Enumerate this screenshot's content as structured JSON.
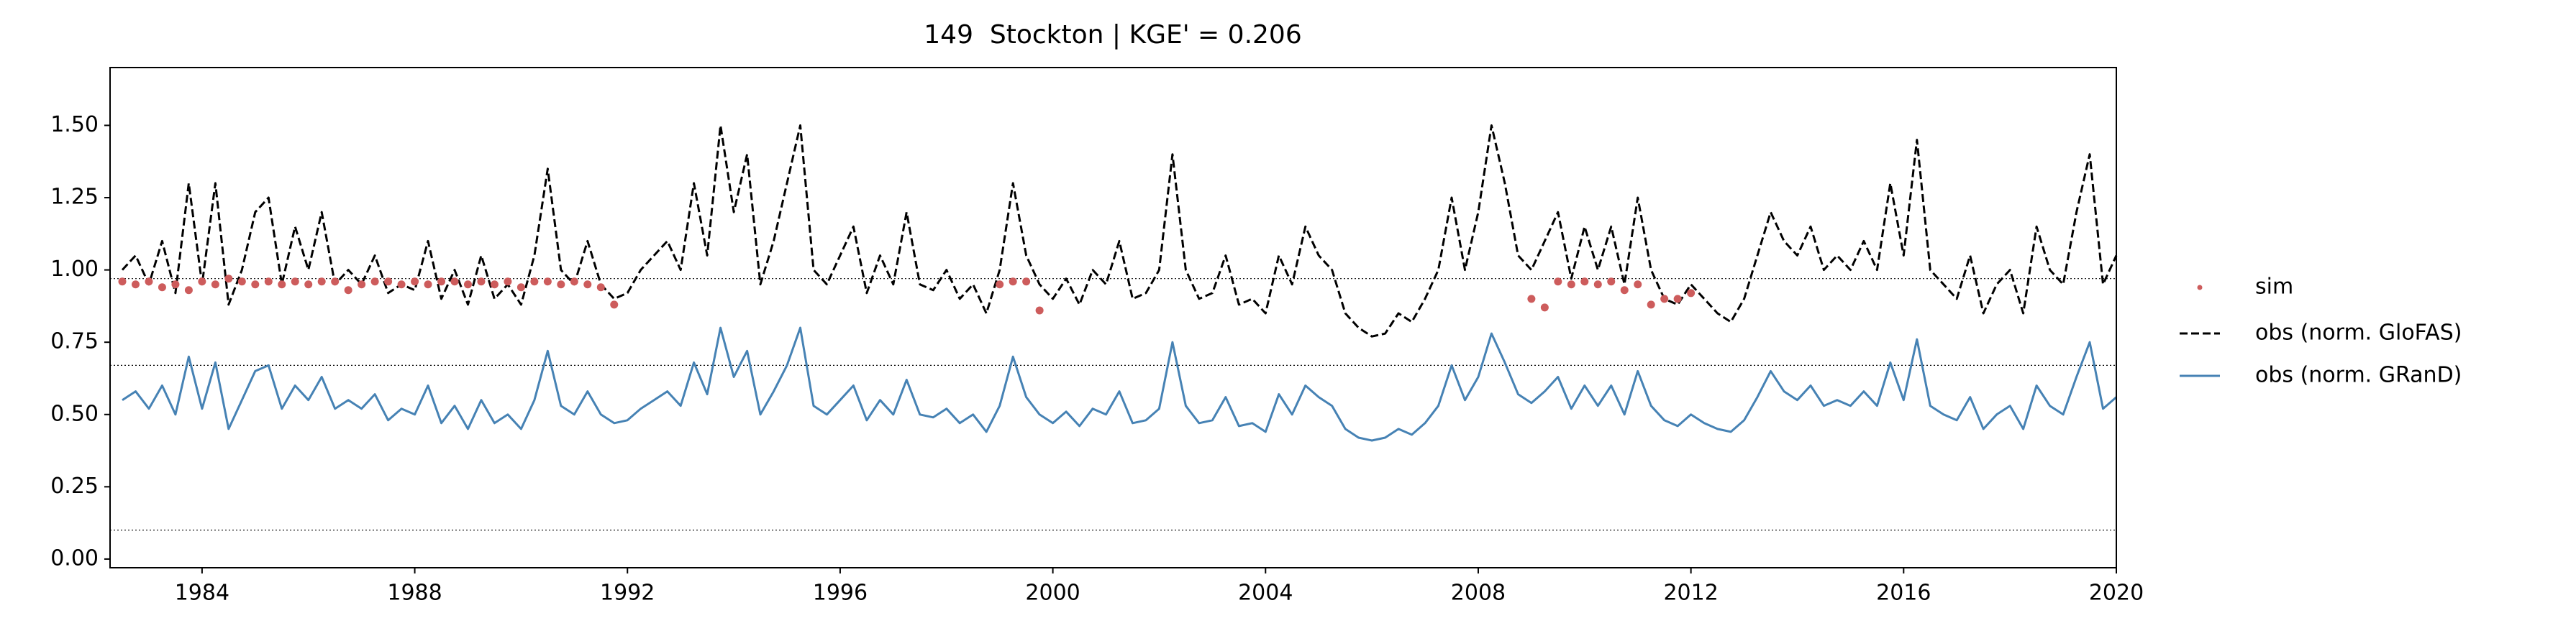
{
  "chart_data": {
    "type": "line",
    "title": "149  Stockton | KGE' = 0.206",
    "x": [
      1982.5,
      1982.75,
      1983,
      1983.25,
      1983.5,
      1983.75,
      1984,
      1984.25,
      1984.5,
      1984.75,
      1985,
      1985.25,
      1985.5,
      1985.75,
      1986,
      1986.25,
      1986.5,
      1986.75,
      1987,
      1987.25,
      1987.5,
      1987.75,
      1988,
      1988.25,
      1988.5,
      1988.75,
      1989,
      1989.25,
      1989.5,
      1989.75,
      1990,
      1990.25,
      1990.5,
      1990.75,
      1991,
      1991.25,
      1991.5,
      1991.75,
      1992,
      1992.25,
      1992.5,
      1992.75,
      1993,
      1993.25,
      1993.5,
      1993.75,
      1994,
      1994.25,
      1994.5,
      1994.75,
      1995,
      1995.25,
      1995.5,
      1995.75,
      1996,
      1996.25,
      1996.5,
      1996.75,
      1997,
      1997.25,
      1997.5,
      1997.75,
      1998,
      1998.25,
      1998.5,
      1998.75,
      1999,
      1999.25,
      1999.5,
      1999.75,
      2000,
      2000.25,
      2000.5,
      2000.75,
      2001,
      2001.25,
      2001.5,
      2001.75,
      2002,
      2002.25,
      2002.5,
      2002.75,
      2003,
      2003.25,
      2003.5,
      2003.75,
      2004,
      2004.25,
      2004.5,
      2004.75,
      2005,
      2005.25,
      2005.5,
      2005.75,
      2006,
      2006.25,
      2006.5,
      2006.75,
      2007,
      2007.25,
      2007.5,
      2007.75,
      2008,
      2008.25,
      2008.5,
      2008.75,
      2009,
      2009.25,
      2009.5,
      2009.75,
      2010,
      2010.25,
      2010.5,
      2010.75,
      2011,
      2011.25,
      2011.5,
      2011.75,
      2012,
      2012.25,
      2012.5,
      2012.75,
      2013,
      2013.25,
      2013.5,
      2013.75,
      2014,
      2014.25,
      2014.5,
      2014.75,
      2015,
      2015.25,
      2015.5,
      2015.75,
      2016,
      2016.25,
      2016.5,
      2016.75,
      2017,
      2017.25,
      2017.5,
      2017.75,
      2018,
      2018.25,
      2018.5,
      2018.75,
      2019,
      2019.25,
      2019.5,
      2019.75,
      2020
    ],
    "series": [
      {
        "name": "sim",
        "color": "#cd5c5c",
        "style": "dots",
        "values": [
          0.96,
          0.95,
          0.96,
          0.94,
          0.95,
          0.93,
          0.96,
          0.95,
          0.97,
          0.96,
          0.95,
          0.96,
          0.95,
          0.96,
          0.95,
          0.96,
          0.96,
          0.93,
          0.95,
          0.96,
          0.96,
          0.95,
          0.96,
          0.95,
          0.96,
          0.96,
          0.95,
          0.96,
          0.95,
          0.96,
          0.94,
          0.96,
          0.96,
          0.95,
          0.96,
          0.95,
          0.94,
          0.88,
          null,
          null,
          null,
          null,
          null,
          null,
          null,
          null,
          null,
          null,
          null,
          null,
          null,
          null,
          null,
          null,
          null,
          null,
          null,
          null,
          null,
          null,
          null,
          null,
          null,
          null,
          null,
          null,
          0.95,
          0.96,
          0.96,
          0.86,
          null,
          null,
          null,
          null,
          null,
          null,
          null,
          null,
          null,
          null,
          null,
          null,
          null,
          null,
          null,
          null,
          null,
          null,
          null,
          null,
          null,
          null,
          null,
          null,
          null,
          null,
          null,
          null,
          null,
          null,
          null,
          null,
          null,
          null,
          null,
          null,
          0.9,
          0.87,
          0.96,
          0.95,
          0.96,
          0.95,
          0.96,
          0.93,
          0.95,
          0.88,
          0.9,
          0.9,
          0.92,
          null,
          null,
          null,
          null,
          null,
          null,
          null,
          null,
          null,
          null,
          null,
          null,
          null,
          null,
          null,
          null,
          null,
          null,
          null,
          null,
          null,
          null,
          null,
          null,
          null,
          null,
          null,
          null,
          null,
          null,
          null,
          null
        ]
      },
      {
        "name": "obs (norm. GloFAS)",
        "color": "#000000",
        "style": "dashed",
        "values": [
          1.0,
          1.05,
          0.95,
          1.1,
          0.92,
          1.3,
          0.95,
          1.3,
          0.88,
          1.0,
          1.2,
          1.25,
          0.95,
          1.15,
          1.0,
          1.2,
          0.95,
          1.0,
          0.95,
          1.05,
          0.92,
          0.95,
          0.93,
          1.1,
          0.9,
          1.0,
          0.88,
          1.05,
          0.9,
          0.95,
          0.88,
          1.05,
          1.35,
          1.0,
          0.95,
          1.1,
          0.95,
          0.9,
          0.92,
          1.0,
          1.05,
          1.1,
          1.0,
          1.3,
          1.05,
          1.5,
          1.2,
          1.4,
          0.95,
          1.1,
          1.3,
          1.5,
          1.0,
          0.95,
          1.05,
          1.15,
          0.92,
          1.05,
          0.95,
          1.2,
          0.95,
          0.93,
          1.0,
          0.9,
          0.95,
          0.85,
          1.0,
          1.3,
          1.05,
          0.95,
          0.9,
          0.97,
          0.88,
          1.0,
          0.95,
          1.1,
          0.9,
          0.92,
          1.0,
          1.4,
          1.0,
          0.9,
          0.92,
          1.05,
          0.88,
          0.9,
          0.85,
          1.05,
          0.95,
          1.15,
          1.05,
          1.0,
          0.85,
          0.8,
          0.77,
          0.78,
          0.85,
          0.82,
          0.9,
          1.0,
          1.25,
          1.0,
          1.2,
          1.5,
          1.3,
          1.05,
          1.0,
          1.1,
          1.2,
          0.97,
          1.15,
          1.0,
          1.15,
          0.95,
          1.25,
          1.0,
          0.9,
          0.88,
          0.95,
          0.9,
          0.85,
          0.82,
          0.9,
          1.05,
          1.2,
          1.1,
          1.05,
          1.15,
          1.0,
          1.05,
          1.0,
          1.1,
          1.0,
          1.3,
          1.05,
          1.45,
          1.0,
          0.95,
          0.9,
          1.05,
          0.85,
          0.95,
          1.0,
          0.85,
          1.15,
          1.0,
          0.95,
          1.2,
          1.4,
          0.95,
          1.05
        ]
      },
      {
        "name": "obs (norm. GRanD)",
        "color": "#4682b4",
        "style": "solid",
        "values": [
          0.55,
          0.58,
          0.52,
          0.6,
          0.5,
          0.7,
          0.52,
          0.68,
          0.45,
          0.55,
          0.65,
          0.67,
          0.52,
          0.6,
          0.55,
          0.63,
          0.52,
          0.55,
          0.52,
          0.57,
          0.48,
          0.52,
          0.5,
          0.6,
          0.47,
          0.53,
          0.45,
          0.55,
          0.47,
          0.5,
          0.45,
          0.55,
          0.72,
          0.53,
          0.5,
          0.58,
          0.5,
          0.47,
          0.48,
          0.52,
          0.55,
          0.58,
          0.53,
          0.68,
          0.57,
          0.8,
          0.63,
          0.72,
          0.5,
          0.58,
          0.67,
          0.8,
          0.53,
          0.5,
          0.55,
          0.6,
          0.48,
          0.55,
          0.5,
          0.62,
          0.5,
          0.49,
          0.52,
          0.47,
          0.5,
          0.44,
          0.53,
          0.7,
          0.56,
          0.5,
          0.47,
          0.51,
          0.46,
          0.52,
          0.5,
          0.58,
          0.47,
          0.48,
          0.52,
          0.75,
          0.53,
          0.47,
          0.48,
          0.56,
          0.46,
          0.47,
          0.44,
          0.57,
          0.5,
          0.6,
          0.56,
          0.53,
          0.45,
          0.42,
          0.41,
          0.42,
          0.45,
          0.43,
          0.47,
          0.53,
          0.67,
          0.55,
          0.63,
          0.78,
          0.68,
          0.57,
          0.54,
          0.58,
          0.63,
          0.52,
          0.6,
          0.53,
          0.6,
          0.5,
          0.65,
          0.53,
          0.48,
          0.46,
          0.5,
          0.47,
          0.45,
          0.44,
          0.48,
          0.56,
          0.65,
          0.58,
          0.55,
          0.6,
          0.53,
          0.55,
          0.53,
          0.58,
          0.53,
          0.68,
          0.55,
          0.76,
          0.53,
          0.5,
          0.48,
          0.56,
          0.45,
          0.5,
          0.53,
          0.45,
          0.6,
          0.53,
          0.5,
          0.63,
          0.75,
          0.52,
          0.56
        ]
      }
    ],
    "hlines": [
      0.97,
      0.67,
      0.1
    ],
    "xlim": [
      1982.27,
      2020
    ],
    "xticks": [
      1984,
      1988,
      1992,
      1996,
      2000,
      2004,
      2008,
      2012,
      2016,
      2020
    ],
    "ylim": [
      -0.03,
      1.7
    ],
    "yticks": [
      {
        "value": 0,
        "label": "0.00"
      },
      {
        "value": 0.25,
        "label": "0.25"
      },
      {
        "value": 0.5,
        "label": "0.50"
      },
      {
        "value": 0.75,
        "label": "0.75"
      },
      {
        "value": 1,
        "label": "1.00"
      },
      {
        "value": 1.25,
        "label": "1.25"
      },
      {
        "value": 1.5,
        "label": "1.50"
      }
    ],
    "grid": false,
    "legend": "outside right"
  }
}
